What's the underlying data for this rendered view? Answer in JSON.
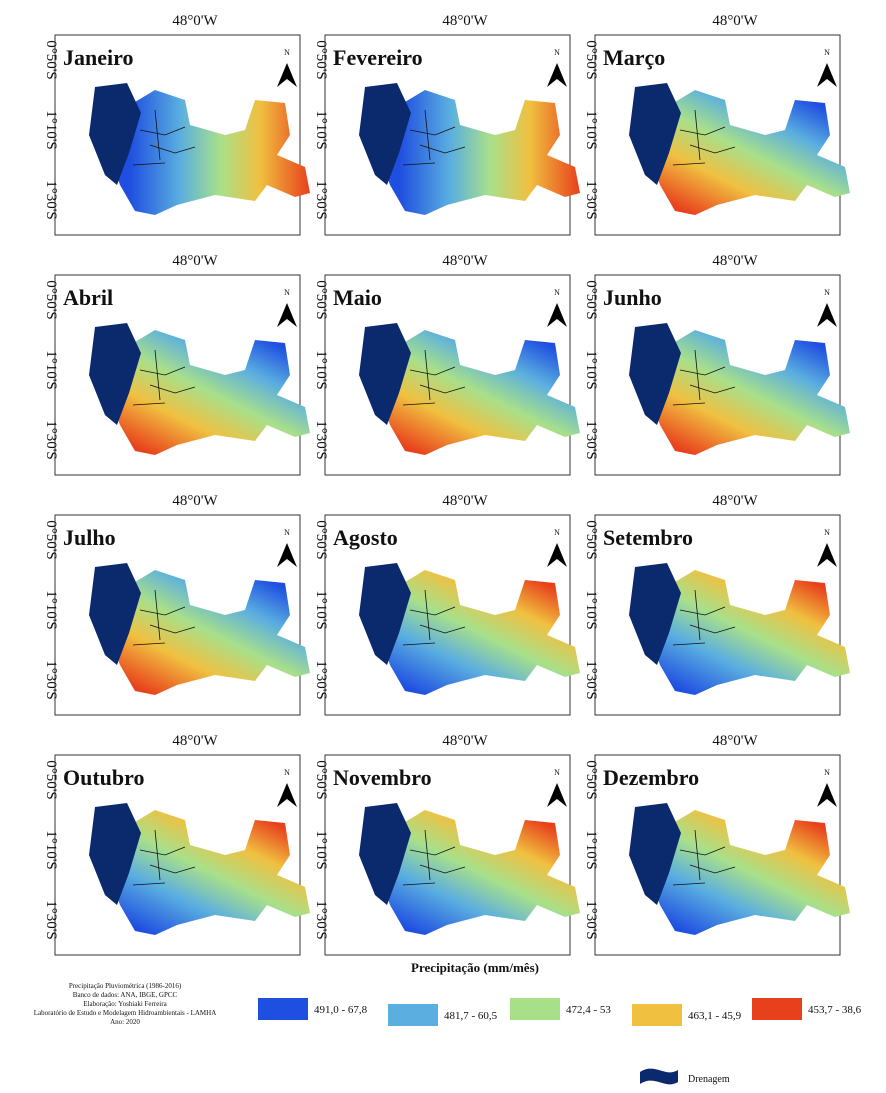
{
  "panels": [
    {
      "month": "Janeiro",
      "lon": "48°0'W",
      "lat": [
        "0°50'S",
        "1°10'S",
        "1°30'S"
      ],
      "north": "N"
    },
    {
      "month": "Fevereiro",
      "lon": "48°0'W",
      "lat": [
        "0°50'S",
        "1°10'S",
        "1°30'S"
      ],
      "north": "N"
    },
    {
      "month": "Março",
      "lon": "48°0'W",
      "lat": [
        "0°50'S",
        "1°10'S",
        "1°30'S"
      ],
      "north": "N"
    },
    {
      "month": "Abril",
      "lon": "48°0'W",
      "lat": [
        "0°50'S",
        "1°10'S",
        "1°30'S"
      ],
      "north": "N"
    },
    {
      "month": "Maio",
      "lon": "48°0'W",
      "lat": [
        "0°50'S",
        "1°10'S",
        "1°30'S"
      ],
      "north": "N"
    },
    {
      "month": "Junho",
      "lon": "48°0'W",
      "lat": [
        "0°50'S",
        "1°10'S",
        "1°30'S"
      ],
      "north": "N"
    },
    {
      "month": "Julho",
      "lon": "48°0'W",
      "lat": [
        "0°50'S",
        "1°10'S",
        "1°30'S"
      ],
      "north": "N"
    },
    {
      "month": "Agosto",
      "lon": "48°0'W",
      "lat": [
        "0°50'S",
        "1°10'S",
        "1°30'S"
      ],
      "north": "N"
    },
    {
      "month": "Setembro",
      "lon": "48°0'W",
      "lat": [
        "0°50'S",
        "1°10'S",
        "1°30'S"
      ],
      "north": "N"
    },
    {
      "month": "Outubro",
      "lon": "48°0'W",
      "lat": [
        "0°50'S",
        "1°10'S",
        "1°30'S"
      ],
      "north": "N"
    },
    {
      "month": "Novembro",
      "lon": "48°0'W",
      "lat": [
        "0°50'S",
        "1°10'S",
        "1°30'S"
      ],
      "north": "N"
    },
    {
      "month": "Dezembro",
      "lon": "48°0'W",
      "lat": [
        "0°50'S",
        "1°10'S",
        "1°30'S"
      ],
      "north": "N"
    }
  ],
  "credits": [
    "Precipitação Pluviométrica (1986-2016)",
    "Banco de dados: ANA, IBGE, GPCC",
    "Elaboração: Yoshiaki Ferreira",
    "Laboratório de Estudo e Modelagem Hidroambientais - LAMHA",
    "Ano: 2020"
  ],
  "legend": {
    "title": "Precipitação (mm/mês)",
    "items": [
      {
        "label": "491,0 - 67,8",
        "color": "#1f4fe0"
      },
      {
        "label": "481,7 - 60,5",
        "color": "#5aaee0"
      },
      {
        "label": "472,4 - 53",
        "color": "#a8e08a"
      },
      {
        "label": "463,1 - 45,9",
        "color": "#f0c040"
      },
      {
        "label": "453,7 - 38,6",
        "color": "#e8401c"
      }
    ],
    "drainage": "Drenagem"
  }
}
